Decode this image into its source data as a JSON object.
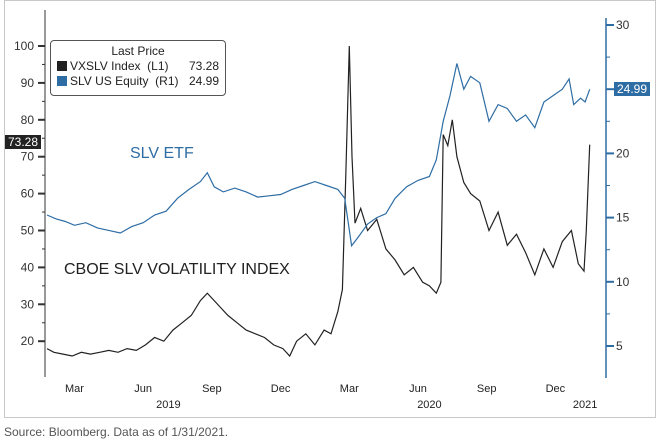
{
  "chart_data": {
    "type": "line",
    "title": "",
    "source": "Source: Bloomberg. Data as of 1/31/2021.",
    "x_unit": "months since Jan 2019",
    "x_ticks": [
      {
        "label": "Mar",
        "m": 2.5
      },
      {
        "label": "Jun",
        "m": 5.5
      },
      {
        "label": "Sep",
        "m": 8.5
      },
      {
        "label": "Dec",
        "m": 11.5
      },
      {
        "label": "Mar",
        "m": 14.5
      },
      {
        "label": "Jun",
        "m": 17.5
      },
      {
        "label": "Sep",
        "m": 20.5
      },
      {
        "label": "Dec",
        "m": 23.5
      }
    ],
    "year_labels": [
      {
        "label": "2019",
        "m": 6.6
      },
      {
        "label": "2020",
        "m": 18.0
      },
      {
        "label": "2021",
        "m": 24.8
      }
    ],
    "left_axis": {
      "ylim": [
        15,
        103
      ],
      "ticks": [
        20,
        30,
        40,
        50,
        60,
        70,
        80,
        90,
        100
      ]
    },
    "right_axis": {
      "ylim": [
        3,
        31
      ],
      "ticks": [
        5,
        10,
        15,
        20,
        25,
        30
      ]
    },
    "legend": {
      "title": "Last Price",
      "placement": "top-left",
      "entries": [
        {
          "name": "VXSLV Index",
          "axis": "(L1)",
          "value": "73.28",
          "color": "#222222"
        },
        {
          "name": "SLV US Equity",
          "axis": "(R1)",
          "value": "24.99",
          "color": "#2e6da4"
        }
      ]
    },
    "annotations": {
      "slv": "SLV ETF",
      "vol": "CBOE SLV VOLATILITY INDEX"
    },
    "last_tags": {
      "left": "73.28",
      "right": "24.99"
    },
    "series": [
      {
        "name": "VXSLV Index",
        "axis": "left",
        "color": "#222222",
        "points": [
          [
            1.3,
            18
          ],
          [
            1.6,
            17
          ],
          [
            2.0,
            16.5
          ],
          [
            2.4,
            16
          ],
          [
            2.8,
            17
          ],
          [
            3.2,
            16.5
          ],
          [
            3.6,
            17
          ],
          [
            4.0,
            17.5
          ],
          [
            4.4,
            17
          ],
          [
            4.8,
            18
          ],
          [
            5.2,
            17.5
          ],
          [
            5.6,
            19
          ],
          [
            6.0,
            21
          ],
          [
            6.4,
            20
          ],
          [
            6.8,
            23
          ],
          [
            7.2,
            25
          ],
          [
            7.6,
            27
          ],
          [
            8.0,
            31
          ],
          [
            8.3,
            33
          ],
          [
            8.6,
            31
          ],
          [
            8.9,
            29
          ],
          [
            9.2,
            27
          ],
          [
            9.6,
            25
          ],
          [
            10.0,
            23
          ],
          [
            10.4,
            22
          ],
          [
            10.8,
            21
          ],
          [
            11.2,
            19
          ],
          [
            11.6,
            18
          ],
          [
            11.9,
            16
          ],
          [
            12.2,
            20
          ],
          [
            12.6,
            22
          ],
          [
            13.0,
            19
          ],
          [
            13.4,
            23
          ],
          [
            13.7,
            22
          ],
          [
            14.0,
            28
          ],
          [
            14.2,
            34
          ],
          [
            14.35,
            65
          ],
          [
            14.5,
            100
          ],
          [
            14.62,
            70
          ],
          [
            14.75,
            52
          ],
          [
            15.0,
            56
          ],
          [
            15.3,
            50
          ],
          [
            15.7,
            53
          ],
          [
            16.1,
            45
          ],
          [
            16.5,
            42
          ],
          [
            16.9,
            38
          ],
          [
            17.3,
            40
          ],
          [
            17.7,
            36
          ],
          [
            18.0,
            35
          ],
          [
            18.3,
            33
          ],
          [
            18.5,
            36
          ],
          [
            18.6,
            76
          ],
          [
            18.8,
            73
          ],
          [
            19.0,
            80
          ],
          [
            19.2,
            70
          ],
          [
            19.5,
            63
          ],
          [
            19.8,
            60
          ],
          [
            20.2,
            58
          ],
          [
            20.6,
            50
          ],
          [
            21.0,
            55
          ],
          [
            21.4,
            46
          ],
          [
            21.8,
            49
          ],
          [
            22.2,
            44
          ],
          [
            22.6,
            38
          ],
          [
            23.0,
            45
          ],
          [
            23.4,
            40
          ],
          [
            23.8,
            47
          ],
          [
            24.2,
            50
          ],
          [
            24.5,
            41
          ],
          [
            24.75,
            39
          ],
          [
            24.85,
            50
          ],
          [
            25.0,
            73.28
          ]
        ]
      },
      {
        "name": "SLV US Equity",
        "axis": "right",
        "color": "#2e6da4",
        "points": [
          [
            1.3,
            15.2
          ],
          [
            1.7,
            14.9
          ],
          [
            2.1,
            14.7
          ],
          [
            2.5,
            14.4
          ],
          [
            3.0,
            14.6
          ],
          [
            3.5,
            14.2
          ],
          [
            4.0,
            14.0
          ],
          [
            4.5,
            13.8
          ],
          [
            5.0,
            14.3
          ],
          [
            5.5,
            14.6
          ],
          [
            6.0,
            15.2
          ],
          [
            6.5,
            15.5
          ],
          [
            7.0,
            16.5
          ],
          [
            7.5,
            17.2
          ],
          [
            8.0,
            17.8
          ],
          [
            8.3,
            18.5
          ],
          [
            8.6,
            17.4
          ],
          [
            9.0,
            17.0
          ],
          [
            9.5,
            17.3
          ],
          [
            10.0,
            17.0
          ],
          [
            10.5,
            16.6
          ],
          [
            11.0,
            16.7
          ],
          [
            11.5,
            16.8
          ],
          [
            12.0,
            17.2
          ],
          [
            12.5,
            17.5
          ],
          [
            13.0,
            17.8
          ],
          [
            13.5,
            17.5
          ],
          [
            14.0,
            17.2
          ],
          [
            14.3,
            16.5
          ],
          [
            14.6,
            12.8
          ],
          [
            14.9,
            13.5
          ],
          [
            15.3,
            14.5
          ],
          [
            15.7,
            15.0
          ],
          [
            16.1,
            15.3
          ],
          [
            16.5,
            16.5
          ],
          [
            17.0,
            17.4
          ],
          [
            17.5,
            17.9
          ],
          [
            18.0,
            18.2
          ],
          [
            18.3,
            19.5
          ],
          [
            18.6,
            22.5
          ],
          [
            18.9,
            24.5
          ],
          [
            19.2,
            27.0
          ],
          [
            19.5,
            25.0
          ],
          [
            19.8,
            26.0
          ],
          [
            20.2,
            25.5
          ],
          [
            20.6,
            22.5
          ],
          [
            21.0,
            23.8
          ],
          [
            21.4,
            23.5
          ],
          [
            21.8,
            22.5
          ],
          [
            22.2,
            23.0
          ],
          [
            22.6,
            22.0
          ],
          [
            23.0,
            24.0
          ],
          [
            23.4,
            24.5
          ],
          [
            23.8,
            25.0
          ],
          [
            24.1,
            25.8
          ],
          [
            24.3,
            23.8
          ],
          [
            24.6,
            24.3
          ],
          [
            24.8,
            24.0
          ],
          [
            25.0,
            24.99
          ]
        ]
      }
    ]
  }
}
